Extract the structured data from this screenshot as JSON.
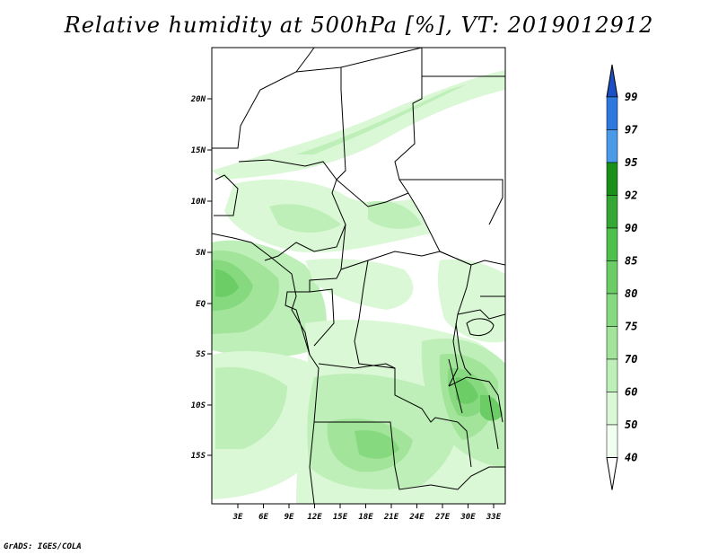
{
  "title": "Relative humidity at 500hPa [%], VT: 2019012912",
  "credit": "GrADS: IGES/COLA",
  "colors": {
    "c40": "#f0fff0",
    "c50": "#daf8d5",
    "c60": "#beefb8",
    "c70": "#a2e49a",
    "c75": "#86d97f",
    "c80": "#6ccd66",
    "c85": "#50c04c",
    "c90": "#34a734",
    "c92": "#1a901a",
    "c95": "#4a9ae8",
    "c97": "#2f78dd",
    "c99": "#1d4fc4",
    "border": "#000000"
  },
  "map": {
    "lat_labels": [
      "20N",
      "15N",
      "10N",
      "5N",
      "EQ",
      "5S",
      "10S",
      "15S"
    ],
    "lon_labels": [
      "3E",
      "6E",
      "9E",
      "12E",
      "15E",
      "18E",
      "21E",
      "24E",
      "27E",
      "30E",
      "33E"
    ]
  },
  "colorbar": {
    "levels": [
      "99",
      "97",
      "95",
      "92",
      "90",
      "85",
      "80",
      "75",
      "70",
      "60",
      "50",
      "40"
    ],
    "bands": [
      "c99",
      "c97",
      "c95",
      "c92",
      "c90",
      "c85",
      "c80",
      "c75",
      "c70",
      "c60",
      "c50",
      "c40"
    ]
  }
}
